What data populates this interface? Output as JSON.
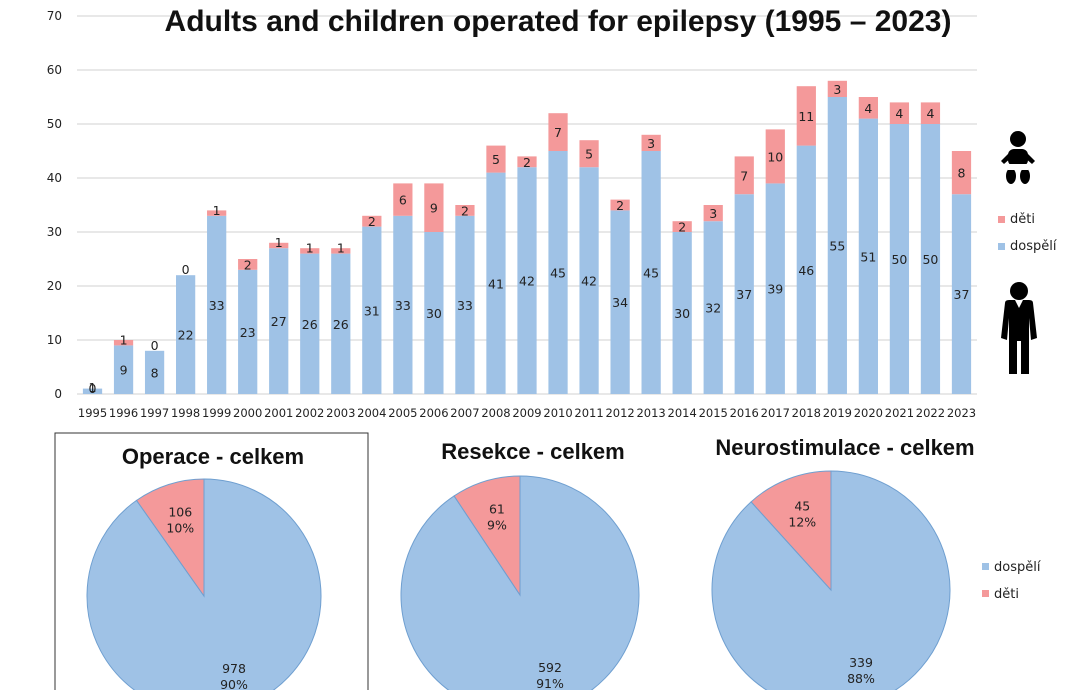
{
  "colors": {
    "adults": "#9fc2e6",
    "children": "#f4999a",
    "grid": "#d0d0d0",
    "pie_stroke": "#6f9fd0"
  },
  "icons": [
    "baby-icon",
    "adult-person-icon"
  ],
  "chart_data": [
    {
      "type": "bar",
      "stacked": true,
      "title": "Adults and children operated for epilepsy (1995 – 2023)",
      "xlabel": "",
      "ylabel": "",
      "ylim": [
        0,
        70
      ],
      "yticks": [
        0,
        10,
        20,
        30,
        40,
        50,
        60,
        70
      ],
      "grid": true,
      "legend_position": "right",
      "categories": [
        "1995",
        "1996",
        "1997",
        "1998",
        "1999",
        "2000",
        "2001",
        "2002",
        "2003",
        "2004",
        "2005",
        "2006",
        "2007",
        "2008",
        "2009",
        "2010",
        "2011",
        "2012",
        "2013",
        "2014",
        "2015",
        "2016",
        "2017",
        "2018",
        "2019",
        "2020",
        "2021",
        "2022",
        "2023"
      ],
      "series": [
        {
          "name": "dospělí",
          "color": "#9fc2e6",
          "values": [
            1,
            9,
            8,
            22,
            33,
            23,
            27,
            26,
            26,
            31,
            33,
            30,
            33,
            41,
            42,
            45,
            42,
            34,
            45,
            30,
            32,
            37,
            39,
            46,
            55,
            51,
            50,
            50,
            37
          ]
        },
        {
          "name": "děti",
          "color": "#f4999a",
          "values": [
            0,
            1,
            0,
            0,
            1,
            2,
            1,
            1,
            1,
            2,
            6,
            9,
            2,
            5,
            2,
            7,
            5,
            2,
            3,
            2,
            3,
            7,
            10,
            11,
            3,
            4,
            4,
            4,
            8
          ]
        }
      ],
      "legend_order": [
        "děti",
        "dospělí"
      ]
    },
    {
      "type": "pie",
      "title": "Operace - celkem",
      "slices": [
        {
          "name": "dospělí",
          "value": 978,
          "percent": "90%",
          "color": "#9fc2e6"
        },
        {
          "name": "děti",
          "value": 106,
          "percent": "10%",
          "color": "#f4999a"
        }
      ]
    },
    {
      "type": "pie",
      "title": "Resekce - celkem",
      "slices": [
        {
          "name": "dospělí",
          "value": 592,
          "percent": "91%",
          "color": "#9fc2e6"
        },
        {
          "name": "děti",
          "value": 61,
          "percent": "9%",
          "color": "#f4999a"
        }
      ]
    },
    {
      "type": "pie",
      "title": "Neurostimulace - celkem",
      "slices": [
        {
          "name": "dospělí",
          "value": 339,
          "percent": "88%",
          "color": "#9fc2e6"
        },
        {
          "name": "děti",
          "value": 45,
          "percent": "12%",
          "color": "#f4999a"
        }
      ]
    }
  ],
  "pie_legend": [
    "dospělí",
    "děti"
  ]
}
